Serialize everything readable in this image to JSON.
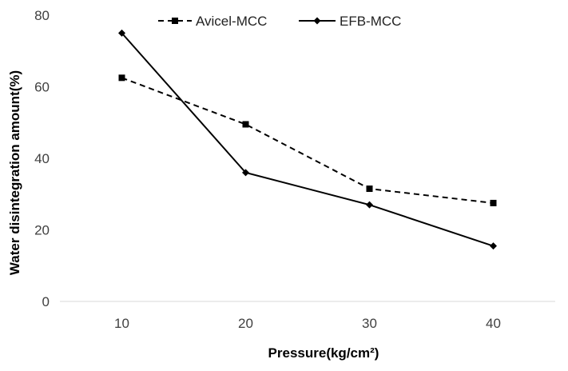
{
  "chart_data": {
    "type": "line",
    "title": "",
    "xlabel": "Pressure(kg/cm²)",
    "ylabel": "Water disintegration amount(%)",
    "x": [
      10,
      20,
      30,
      40
    ],
    "ylim": [
      0,
      80
    ],
    "yticks": [
      0,
      20,
      40,
      60,
      80
    ],
    "grid": false,
    "legend": "top",
    "series": [
      {
        "name": "Avicel-MCC",
        "values": [
          62.5,
          49.5,
          31.5,
          27.5
        ],
        "line_style": "dashed",
        "marker": "square",
        "color": "#000000"
      },
      {
        "name": "EFB-MCC",
        "values": [
          75,
          36,
          27,
          15.5
        ],
        "line_style": "solid",
        "marker": "diamond",
        "color": "#000000"
      }
    ]
  }
}
